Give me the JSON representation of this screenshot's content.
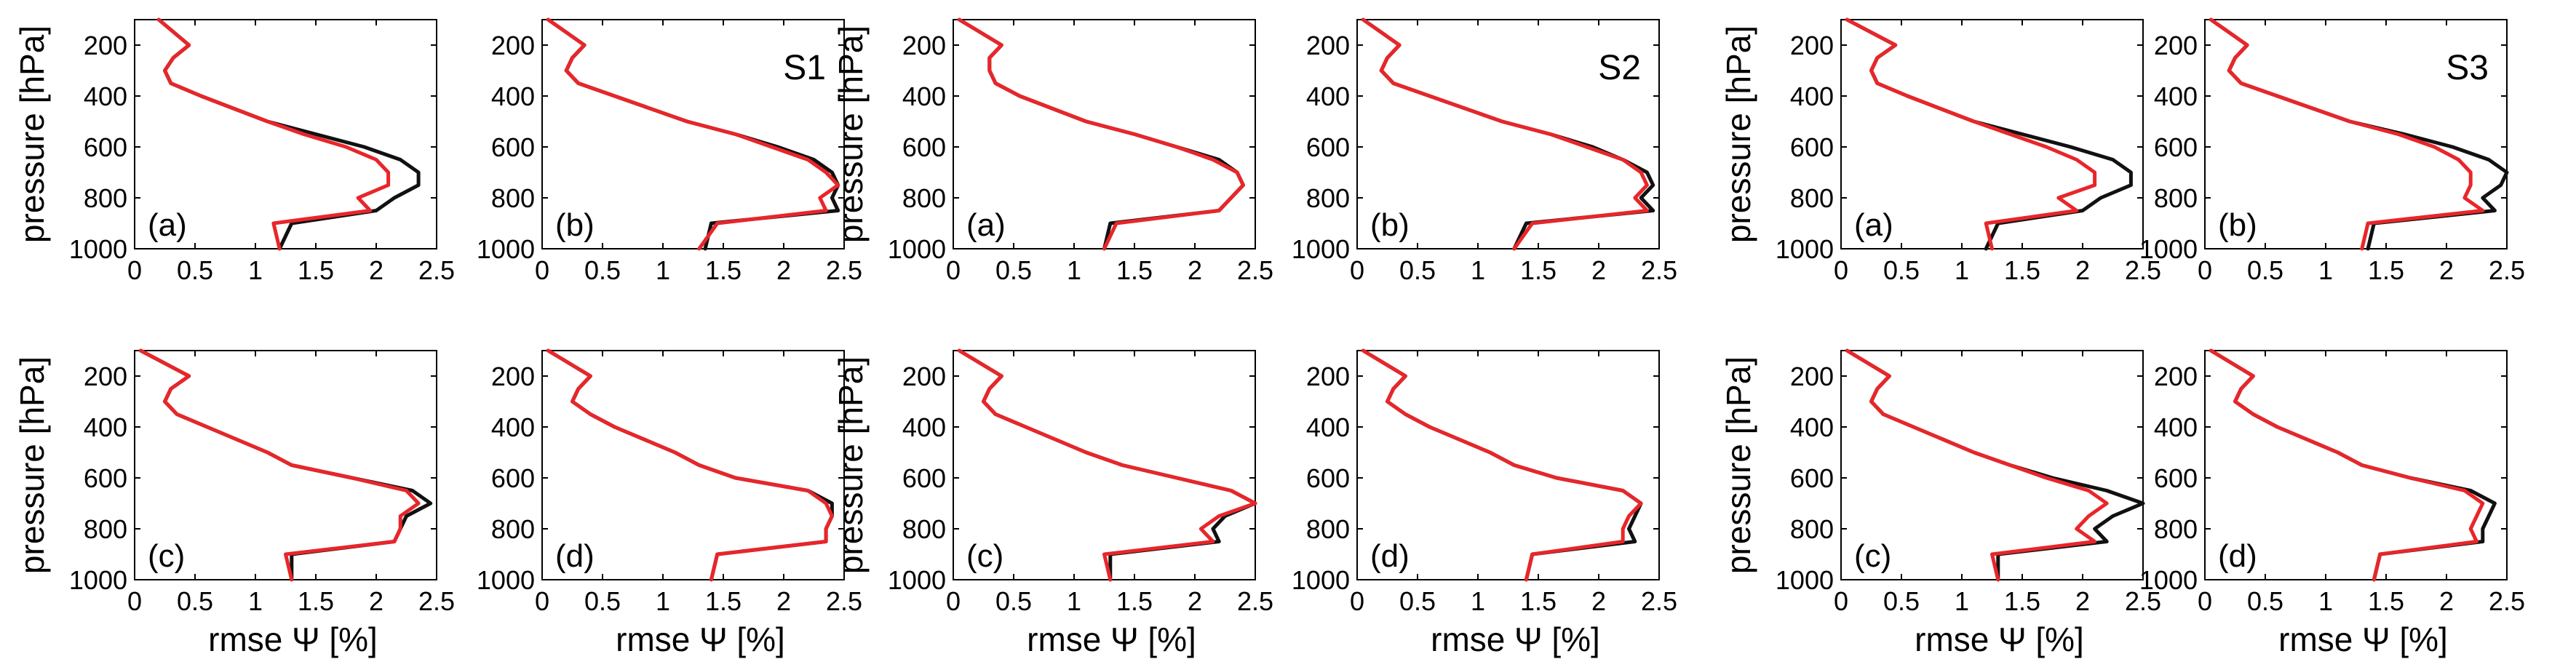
{
  "chart_data": [
    {
      "type": "line",
      "panel": "(a)",
      "scenario": "",
      "ylabel": "pressure [hPa]",
      "xlabel": "",
      "xlim": [
        0,
        2.5
      ],
      "ylim": [
        1000,
        100
      ],
      "xticks": [
        "0",
        "0.5",
        "1",
        "1.5",
        "2",
        "2.5"
      ],
      "yticks": [
        "200",
        "400",
        "600",
        "800",
        "1000"
      ],
      "y": [
        100,
        200,
        250,
        300,
        350,
        400,
        500,
        550,
        600,
        650,
        700,
        750,
        800,
        850,
        900,
        1000
      ],
      "series": [
        {
          "name": "black",
          "color": "#111111",
          "values": [
            0.2,
            0.45,
            0.32,
            0.25,
            0.3,
            0.55,
            1.1,
            1.5,
            1.9,
            2.2,
            2.35,
            2.35,
            2.15,
            2.0,
            1.3,
            1.2
          ]
        },
        {
          "name": "red",
          "color": "#e8262a",
          "values": [
            0.2,
            0.45,
            0.32,
            0.25,
            0.3,
            0.55,
            1.1,
            1.4,
            1.75,
            2.0,
            2.1,
            2.1,
            1.85,
            1.95,
            1.15,
            1.2
          ]
        }
      ]
    },
    {
      "type": "line",
      "panel": "(b)",
      "scenario": "S1",
      "ylabel": "",
      "xlabel": "",
      "xlim": [
        0,
        2.5
      ],
      "ylim": [
        1000,
        100
      ],
      "xticks": [
        "0",
        "0.5",
        "1",
        "1.5",
        "2",
        "2.5"
      ],
      "yticks": [
        "200",
        "400",
        "600",
        "800",
        "1000"
      ],
      "y": [
        100,
        200,
        250,
        300,
        350,
        400,
        500,
        550,
        600,
        650,
        700,
        750,
        800,
        850,
        900,
        1000
      ],
      "series": [
        {
          "name": "black",
          "color": "#111111",
          "values": [
            0.05,
            0.35,
            0.25,
            0.2,
            0.3,
            0.6,
            1.2,
            1.6,
            1.95,
            2.25,
            2.4,
            2.45,
            2.4,
            2.45,
            1.4,
            1.35
          ]
        },
        {
          "name": "red",
          "color": "#e8262a",
          "values": [
            0.05,
            0.35,
            0.25,
            0.2,
            0.3,
            0.6,
            1.2,
            1.6,
            1.9,
            2.2,
            2.35,
            2.45,
            2.3,
            2.35,
            1.45,
            1.3
          ]
        }
      ]
    },
    {
      "type": "line",
      "panel": "(a)",
      "scenario": "",
      "ylabel": "pressure [hPa]",
      "xlabel": "",
      "xlim": [
        0,
        2.5
      ],
      "ylim": [
        1000,
        100
      ],
      "xticks": [
        "0",
        "0.5",
        "1",
        "1.5",
        "2",
        "2.5"
      ],
      "yticks": [
        "200",
        "400",
        "600",
        "800",
        "1000"
      ],
      "y": [
        100,
        200,
        250,
        300,
        350,
        400,
        500,
        550,
        600,
        650,
        700,
        750,
        800,
        850,
        900,
        1000
      ],
      "series": [
        {
          "name": "black",
          "color": "#111111",
          "values": [
            0.05,
            0.4,
            0.3,
            0.3,
            0.35,
            0.55,
            1.1,
            1.5,
            1.85,
            2.2,
            2.35,
            2.4,
            2.3,
            2.2,
            1.3,
            1.25
          ]
        },
        {
          "name": "red",
          "color": "#e8262a",
          "values": [
            0.05,
            0.4,
            0.3,
            0.3,
            0.35,
            0.55,
            1.1,
            1.5,
            1.85,
            2.15,
            2.35,
            2.4,
            2.3,
            2.2,
            1.35,
            1.25
          ]
        }
      ]
    },
    {
      "type": "line",
      "panel": "(b)",
      "scenario": "S2",
      "ylabel": "",
      "xlabel": "",
      "xlim": [
        0,
        2.5
      ],
      "ylim": [
        1000,
        100
      ],
      "xticks": [
        "0",
        "0.5",
        "1",
        "1.5",
        "2",
        "2.5"
      ],
      "yticks": [
        "200",
        "400",
        "600",
        "800",
        "1000"
      ],
      "y": [
        100,
        200,
        250,
        300,
        350,
        400,
        500,
        550,
        600,
        650,
        700,
        750,
        800,
        850,
        900,
        1000
      ],
      "series": [
        {
          "name": "black",
          "color": "#111111",
          "values": [
            0.05,
            0.35,
            0.25,
            0.2,
            0.3,
            0.6,
            1.2,
            1.6,
            1.95,
            2.2,
            2.4,
            2.45,
            2.35,
            2.45,
            1.4,
            1.3
          ]
        },
        {
          "name": "red",
          "color": "#e8262a",
          "values": [
            0.05,
            0.35,
            0.25,
            0.2,
            0.3,
            0.6,
            1.2,
            1.6,
            1.9,
            2.2,
            2.35,
            2.4,
            2.3,
            2.4,
            1.45,
            1.3
          ]
        }
      ]
    },
    {
      "type": "line",
      "panel": "(a)",
      "scenario": "",
      "ylabel": "pressure [hPa]",
      "xlabel": "",
      "xlim": [
        0,
        2.5
      ],
      "ylim": [
        1000,
        100
      ],
      "xticks": [
        "0",
        "0.5",
        "1",
        "1.5",
        "2",
        "2.5"
      ],
      "yticks": [
        "200",
        "400",
        "600",
        "800",
        "1000"
      ],
      "y": [
        100,
        200,
        250,
        300,
        350,
        400,
        500,
        550,
        600,
        650,
        700,
        750,
        800,
        850,
        900,
        1000
      ],
      "series": [
        {
          "name": "black",
          "color": "#111111",
          "values": [
            0.05,
            0.45,
            0.3,
            0.25,
            0.3,
            0.55,
            1.1,
            1.5,
            1.9,
            2.25,
            2.4,
            2.4,
            2.15,
            2.0,
            1.3,
            1.2
          ]
        },
        {
          "name": "red",
          "color": "#e8262a",
          "values": [
            0.05,
            0.45,
            0.3,
            0.25,
            0.3,
            0.55,
            1.1,
            1.4,
            1.7,
            1.95,
            2.1,
            2.1,
            1.8,
            1.95,
            1.2,
            1.25
          ]
        }
      ]
    },
    {
      "type": "line",
      "panel": "(b)",
      "scenario": "S3",
      "ylabel": "",
      "xlabel": "",
      "xlim": [
        0,
        2.5
      ],
      "ylim": [
        1000,
        100
      ],
      "xticks": [
        "0",
        "0.5",
        "1",
        "1.5",
        "2",
        "2.5"
      ],
      "yticks": [
        "200",
        "400",
        "600",
        "800",
        "1000"
      ],
      "y": [
        100,
        200,
        250,
        300,
        350,
        400,
        500,
        550,
        600,
        650,
        700,
        750,
        800,
        850,
        900,
        1000
      ],
      "series": [
        {
          "name": "black",
          "color": "#111111",
          "values": [
            0.05,
            0.35,
            0.25,
            0.2,
            0.3,
            0.6,
            1.2,
            1.65,
            2.05,
            2.35,
            2.5,
            2.45,
            2.3,
            2.4,
            1.4,
            1.35
          ]
        },
        {
          "name": "red",
          "color": "#e8262a",
          "values": [
            0.05,
            0.35,
            0.25,
            0.2,
            0.3,
            0.6,
            1.2,
            1.6,
            1.9,
            2.1,
            2.2,
            2.2,
            2.15,
            2.3,
            1.35,
            1.3
          ]
        }
      ]
    },
    {
      "type": "line",
      "panel": "(c)",
      "scenario": "",
      "ylabel": "pressure [hPa]",
      "xlabel": "rmse Ψ [%]",
      "xlim": [
        0,
        2.5
      ],
      "ylim": [
        1000,
        100
      ],
      "xticks": [
        "0",
        "0.5",
        "1",
        "1.5",
        "2",
        "2.5"
      ],
      "yticks": [
        "200",
        "400",
        "600",
        "800",
        "1000"
      ],
      "y": [
        100,
        200,
        250,
        300,
        350,
        400,
        500,
        550,
        600,
        650,
        700,
        750,
        800,
        850,
        900,
        1000
      ],
      "series": [
        {
          "name": "black",
          "color": "#111111",
          "values": [
            0.05,
            0.45,
            0.3,
            0.25,
            0.35,
            0.6,
            1.1,
            1.3,
            1.8,
            2.3,
            2.45,
            2.25,
            2.2,
            2.15,
            1.3,
            1.3
          ]
        },
        {
          "name": "red",
          "color": "#e8262a",
          "values": [
            0.05,
            0.45,
            0.3,
            0.25,
            0.35,
            0.6,
            1.1,
            1.3,
            1.8,
            2.25,
            2.35,
            2.2,
            2.2,
            2.15,
            1.25,
            1.3
          ]
        }
      ]
    },
    {
      "type": "line",
      "panel": "(d)",
      "scenario": "",
      "ylabel": "",
      "xlabel": "rmse Ψ [%]",
      "xlim": [
        0,
        2.5
      ],
      "ylim": [
        1000,
        100
      ],
      "xticks": [
        "0",
        "0.5",
        "1",
        "1.5",
        "2",
        "2.5"
      ],
      "yticks": [
        "200",
        "400",
        "600",
        "800",
        "1000"
      ],
      "y": [
        100,
        200,
        250,
        300,
        350,
        400,
        500,
        550,
        600,
        650,
        700,
        750,
        800,
        850,
        900,
        1000
      ],
      "series": [
        {
          "name": "black",
          "color": "#111111",
          "values": [
            0.05,
            0.4,
            0.3,
            0.25,
            0.4,
            0.6,
            1.1,
            1.3,
            1.6,
            2.2,
            2.4,
            2.4,
            2.35,
            2.35,
            1.45,
            1.4
          ]
        },
        {
          "name": "red",
          "color": "#e8262a",
          "values": [
            0.05,
            0.4,
            0.3,
            0.25,
            0.4,
            0.6,
            1.1,
            1.3,
            1.6,
            2.2,
            2.35,
            2.4,
            2.35,
            2.35,
            1.45,
            1.4
          ]
        }
      ]
    },
    {
      "type": "line",
      "panel": "(c)",
      "scenario": "",
      "ylabel": "pressure [hPa]",
      "xlabel": "rmse Ψ [%]",
      "xlim": [
        0,
        2.5
      ],
      "ylim": [
        1000,
        100
      ],
      "xticks": [
        "0",
        "0.5",
        "1",
        "1.5",
        "2",
        "2.5"
      ],
      "yticks": [
        "200",
        "400",
        "600",
        "800",
        "1000"
      ],
      "y": [
        100,
        200,
        250,
        300,
        350,
        400,
        500,
        550,
        600,
        650,
        700,
        750,
        800,
        850,
        900,
        1000
      ],
      "series": [
        {
          "name": "black",
          "color": "#111111",
          "values": [
            0.05,
            0.4,
            0.3,
            0.25,
            0.35,
            0.6,
            1.1,
            1.4,
            1.85,
            2.3,
            2.5,
            2.25,
            2.15,
            2.2,
            1.3,
            1.3
          ]
        },
        {
          "name": "red",
          "color": "#e8262a",
          "values": [
            0.05,
            0.4,
            0.3,
            0.25,
            0.35,
            0.6,
            1.1,
            1.4,
            1.85,
            2.3,
            2.5,
            2.2,
            2.05,
            2.15,
            1.25,
            1.3
          ]
        }
      ]
    },
    {
      "type": "line",
      "panel": "(d)",
      "scenario": "",
      "ylabel": "",
      "xlabel": "rmse Ψ [%]",
      "xlim": [
        0,
        2.5
      ],
      "ylim": [
        1000,
        100
      ],
      "xticks": [
        "0",
        "0.5",
        "1",
        "1.5",
        "2",
        "2.5"
      ],
      "yticks": [
        "200",
        "400",
        "600",
        "800",
        "1000"
      ],
      "y": [
        100,
        200,
        250,
        300,
        350,
        400,
        500,
        550,
        600,
        650,
        700,
        750,
        800,
        850,
        900,
        1000
      ],
      "series": [
        {
          "name": "black",
          "color": "#111111",
          "values": [
            0.05,
            0.4,
            0.3,
            0.25,
            0.4,
            0.6,
            1.1,
            1.3,
            1.65,
            2.2,
            2.35,
            2.3,
            2.25,
            2.3,
            1.45,
            1.4
          ]
        },
        {
          "name": "red",
          "color": "#e8262a",
          "values": [
            0.05,
            0.4,
            0.3,
            0.25,
            0.4,
            0.6,
            1.1,
            1.3,
            1.65,
            2.2,
            2.35,
            2.25,
            2.2,
            2.2,
            1.45,
            1.4
          ]
        }
      ]
    },
    {
      "type": "line",
      "panel": "(c)",
      "scenario": "",
      "ylabel": "pressure [hPa]",
      "xlabel": "rmse Ψ [%]",
      "xlim": [
        0,
        2.5
      ],
      "ylim": [
        1000,
        100
      ],
      "xticks": [
        "0",
        "0.5",
        "1",
        "1.5",
        "2",
        "2.5"
      ],
      "yticks": [
        "200",
        "400",
        "600",
        "800",
        "1000"
      ],
      "y": [
        100,
        200,
        250,
        300,
        350,
        400,
        500,
        550,
        600,
        650,
        700,
        750,
        800,
        850,
        900,
        1000
      ],
      "series": [
        {
          "name": "black",
          "color": "#111111",
          "values": [
            0.05,
            0.4,
            0.3,
            0.25,
            0.35,
            0.6,
            1.1,
            1.4,
            1.75,
            2.2,
            2.5,
            2.25,
            2.1,
            2.2,
            1.3,
            1.3
          ]
        },
        {
          "name": "red",
          "color": "#e8262a",
          "values": [
            0.05,
            0.4,
            0.3,
            0.25,
            0.35,
            0.6,
            1.1,
            1.4,
            1.7,
            2.05,
            2.2,
            2.05,
            1.95,
            2.1,
            1.25,
            1.3
          ]
        }
      ]
    },
    {
      "type": "line",
      "panel": "(d)",
      "scenario": "",
      "ylabel": "",
      "xlabel": "rmse Ψ [%]",
      "xlim": [
        0,
        2.5
      ],
      "ylim": [
        1000,
        100
      ],
      "xticks": [
        "0",
        "0.5",
        "1",
        "1.5",
        "2",
        "2.5"
      ],
      "yticks": [
        "200",
        "400",
        "600",
        "800",
        "1000"
      ],
      "y": [
        100,
        200,
        250,
        300,
        350,
        400,
        500,
        550,
        600,
        650,
        700,
        750,
        800,
        850,
        900,
        1000
      ],
      "series": [
        {
          "name": "black",
          "color": "#111111",
          "values": [
            0.05,
            0.4,
            0.3,
            0.25,
            0.4,
            0.6,
            1.1,
            1.3,
            1.7,
            2.2,
            2.4,
            2.35,
            2.3,
            2.3,
            1.45,
            1.4
          ]
        },
        {
          "name": "red",
          "color": "#e8262a",
          "values": [
            0.05,
            0.4,
            0.3,
            0.25,
            0.4,
            0.6,
            1.1,
            1.3,
            1.7,
            2.15,
            2.3,
            2.25,
            2.2,
            2.25,
            1.45,
            1.4
          ]
        }
      ]
    }
  ]
}
